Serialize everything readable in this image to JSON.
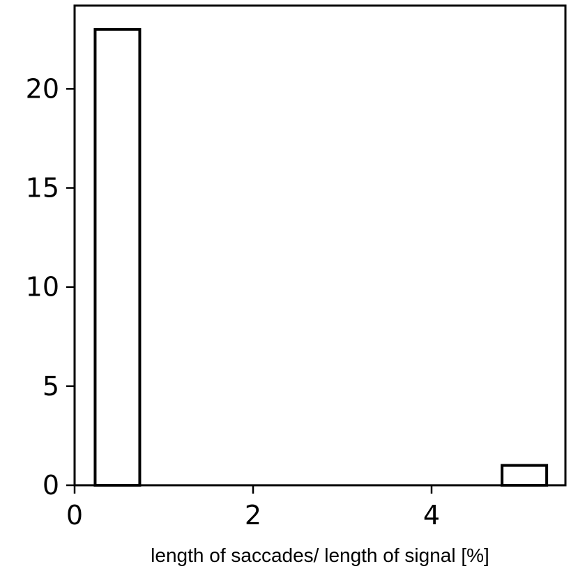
{
  "chart_data": {
    "type": "bar",
    "title": "",
    "xlabel": "length of saccades/ length of signal [%]",
    "ylabel": "",
    "bins": [
      {
        "x0": 0.23,
        "x1": 0.73,
        "count": 23
      },
      {
        "x0": 4.79,
        "x1": 5.29,
        "count": 1
      }
    ],
    "xlim": [
      0,
      5.5
    ],
    "ylim": [
      0,
      24.2
    ],
    "xticks": [
      0,
      2,
      4
    ],
    "xtick_labels": [
      "0",
      "2",
      "4"
    ],
    "yticks": [
      0,
      5,
      10,
      15,
      20
    ],
    "ytick_labels": [
      "0",
      "5",
      "10",
      "15",
      "20"
    ],
    "bar_fill": "#ffffff",
    "bar_edge": "#000000",
    "grid": false,
    "legend": "none"
  }
}
